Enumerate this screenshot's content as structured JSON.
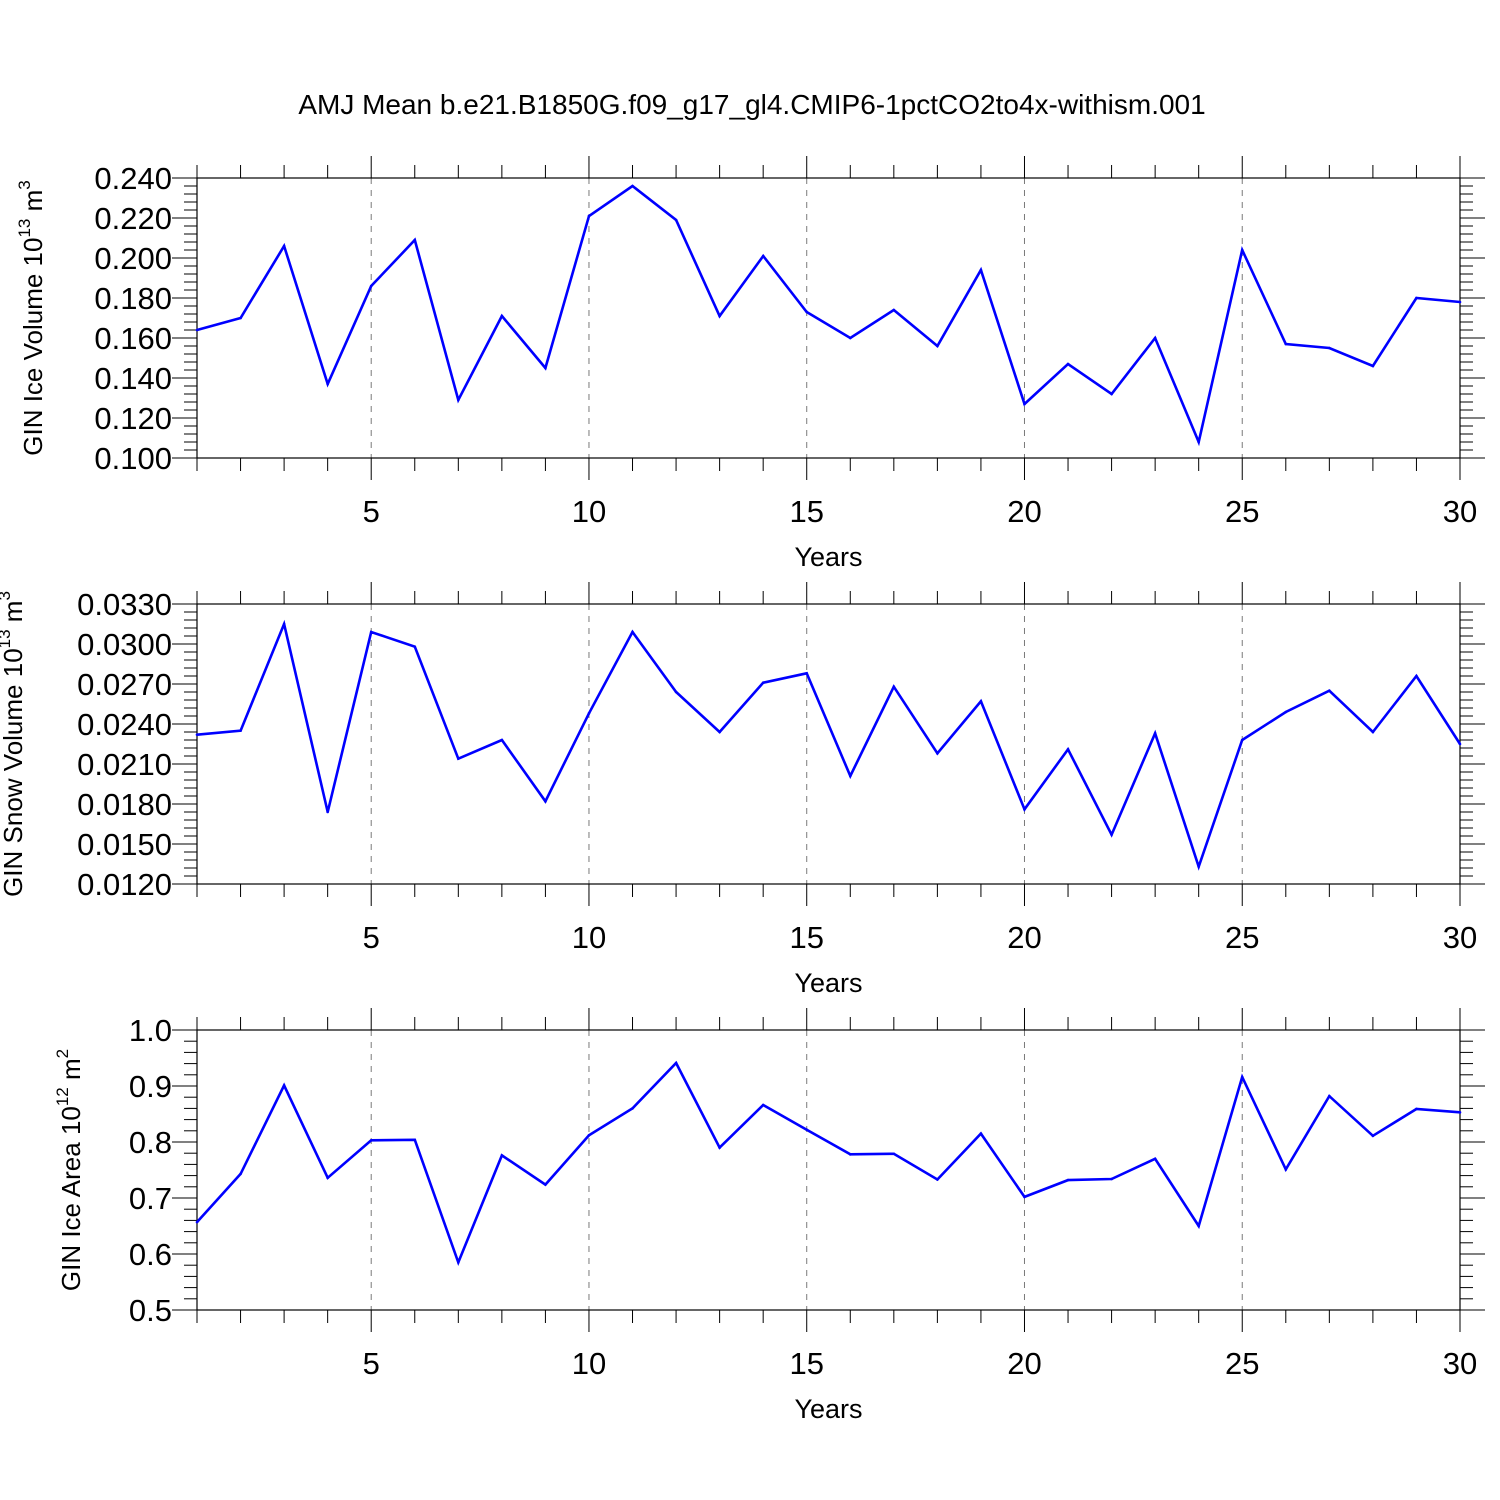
{
  "title": "AMJ Mean b.e21.B1850G.f09_g17_gl4.CMIP6-1pctCO2to4x-withism.001",
  "colors": {
    "line": "#0000ff",
    "grid": "#7a7a7a",
    "axis": "#000000"
  },
  "chart_data": [
    {
      "type": "line",
      "xlabel": "Years",
      "ylabel": {
        "text": "GIN Ice Volume 10",
        "exp": "13",
        "unit": " m",
        "unit_exp": "3"
      },
      "xlim": [
        1,
        30
      ],
      "ylim": [
        0.1,
        0.24
      ],
      "xticks": [
        5,
        10,
        15,
        20,
        25,
        30
      ],
      "yticks": [
        0.1,
        0.12,
        0.14,
        0.16,
        0.18,
        0.2,
        0.22,
        0.24
      ],
      "ytick_labels": [
        "0.100",
        "0.120",
        "0.140",
        "0.160",
        "0.180",
        "0.200",
        "0.220",
        "0.240"
      ],
      "grid": "x-dashed",
      "x": [
        1,
        2,
        3,
        4,
        5,
        6,
        7,
        8,
        9,
        10,
        11,
        12,
        13,
        14,
        15,
        16,
        17,
        18,
        19,
        20,
        21,
        22,
        23,
        24,
        25,
        26,
        27,
        28,
        29,
        30
      ],
      "values": [
        0.164,
        0.17,
        0.206,
        0.137,
        0.186,
        0.209,
        0.129,
        0.171,
        0.145,
        0.221,
        0.236,
        0.219,
        0.171,
        0.201,
        0.173,
        0.16,
        0.174,
        0.156,
        0.194,
        0.127,
        0.147,
        0.132,
        0.16,
        0.108,
        0.204,
        0.157,
        0.155,
        0.146,
        0.18,
        0.178
      ]
    },
    {
      "type": "line",
      "xlabel": "Years",
      "ylabel": {
        "text": "GIN Snow Volume 10",
        "exp": "13",
        "unit": " m",
        "unit_exp": "3"
      },
      "xlim": [
        1,
        30
      ],
      "ylim": [
        0.012,
        0.033
      ],
      "xticks": [
        5,
        10,
        15,
        20,
        25,
        30
      ],
      "yticks": [
        0.012,
        0.015,
        0.018,
        0.021,
        0.024,
        0.027,
        0.03,
        0.033
      ],
      "ytick_labels": [
        "0.0120",
        "0.0150",
        "0.0180",
        "0.0210",
        "0.0240",
        "0.0270",
        "0.0300",
        "0.0330"
      ],
      "grid": "x-dashed",
      "x": [
        1,
        2,
        3,
        4,
        5,
        6,
        7,
        8,
        9,
        10,
        11,
        12,
        13,
        14,
        15,
        16,
        17,
        18,
        19,
        20,
        21,
        22,
        23,
        24,
        25,
        26,
        27,
        28,
        29,
        30
      ],
      "values": [
        0.0232,
        0.0235,
        0.0315,
        0.0174,
        0.0309,
        0.0298,
        0.0214,
        0.0228,
        0.0182,
        0.0248,
        0.0309,
        0.0264,
        0.0234,
        0.0271,
        0.0278,
        0.0201,
        0.0268,
        0.0218,
        0.0257,
        0.0176,
        0.0221,
        0.0157,
        0.0233,
        0.0133,
        0.0228,
        0.0249,
        0.0265,
        0.0234,
        0.0276,
        0.0225
      ]
    },
    {
      "type": "line",
      "xlabel": "Years",
      "ylabel": {
        "text": "GIN Ice Area 10",
        "exp": "12",
        "unit": " m",
        "unit_exp": "2"
      },
      "xlim": [
        1,
        30
      ],
      "ylim": [
        0.5,
        1.0
      ],
      "xticks": [
        5,
        10,
        15,
        20,
        25,
        30
      ],
      "yticks": [
        0.5,
        0.6,
        0.7,
        0.8,
        0.9,
        1.0
      ],
      "ytick_labels": [
        "0.5",
        "0.6",
        "0.7",
        "0.8",
        "0.9",
        "1.0"
      ],
      "grid": "x-dashed",
      "x": [
        1,
        2,
        3,
        4,
        5,
        6,
        7,
        8,
        9,
        10,
        11,
        12,
        13,
        14,
        15,
        16,
        17,
        18,
        19,
        20,
        21,
        22,
        23,
        24,
        25,
        26,
        27,
        28,
        29,
        30
      ],
      "values": [
        0.657,
        0.743,
        0.901,
        0.736,
        0.803,
        0.804,
        0.585,
        0.776,
        0.724,
        0.812,
        0.86,
        0.941,
        0.79,
        0.866,
        0.822,
        0.778,
        0.779,
        0.733,
        0.815,
        0.702,
        0.732,
        0.734,
        0.77,
        0.65,
        0.916,
        0.751,
        0.882,
        0.811,
        0.859,
        0.853
      ]
    }
  ]
}
